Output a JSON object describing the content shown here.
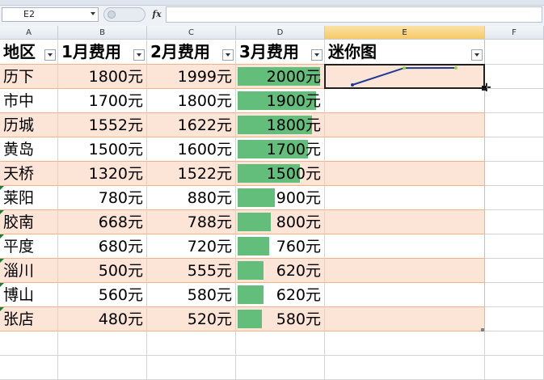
{
  "name_box": "E2",
  "formula_label": "fx",
  "formula_value": "",
  "columns": [
    "A",
    "B",
    "C",
    "D",
    "E",
    "F"
  ],
  "active_column": "E",
  "headers": [
    "地区",
    "1月费用",
    "2月费用",
    "3月费用",
    "迷你图"
  ],
  "rows": [
    {
      "region": "历下",
      "jan": "1800元",
      "feb": "1999元",
      "mar": "2000元",
      "mar_value": 2000,
      "flag": false
    },
    {
      "region": "市中",
      "jan": "1700元",
      "feb": "1800元",
      "mar": "1900元",
      "mar_value": 1900,
      "flag": false
    },
    {
      "region": "历城",
      "jan": "1552元",
      "feb": "1622元",
      "mar": "1800元",
      "mar_value": 1800,
      "flag": false
    },
    {
      "region": "黄岛",
      "jan": "1500元",
      "feb": "1600元",
      "mar": "1700元",
      "mar_value": 1700,
      "flag": false
    },
    {
      "region": "天桥",
      "jan": "1320元",
      "feb": "1522元",
      "mar": "1500元",
      "mar_value": 1500,
      "flag": false
    },
    {
      "region": "莱阳",
      "jan": "780元",
      "feb": "880元",
      "mar": "900元",
      "mar_value": 900,
      "flag": true
    },
    {
      "region": "胶南",
      "jan": "668元",
      "feb": "788元",
      "mar": "800元",
      "mar_value": 800,
      "flag": true
    },
    {
      "region": "平度",
      "jan": "680元",
      "feb": "720元",
      "mar": "760元",
      "mar_value": 760,
      "flag": true
    },
    {
      "region": "淄川",
      "jan": "500元",
      "feb": "555元",
      "mar": "620元",
      "mar_value": 620,
      "flag": true
    },
    {
      "region": "博山",
      "jan": "560元",
      "feb": "580元",
      "mar": "620元",
      "mar_value": 620,
      "flag": true
    },
    {
      "region": "张店",
      "jan": "480元",
      "feb": "520元",
      "mar": "580元",
      "mar_value": 580,
      "flag": true
    }
  ],
  "sparkline": {
    "row_index": 0,
    "values": [
      1800,
      1999,
      2000
    ],
    "color": "#1f3a93",
    "marker_color": "#92d050"
  },
  "colors": {
    "band": "#fce4d6",
    "table_border": "#f4b183",
    "databar": "#63be7b",
    "active_header": "#f6c969"
  }
}
